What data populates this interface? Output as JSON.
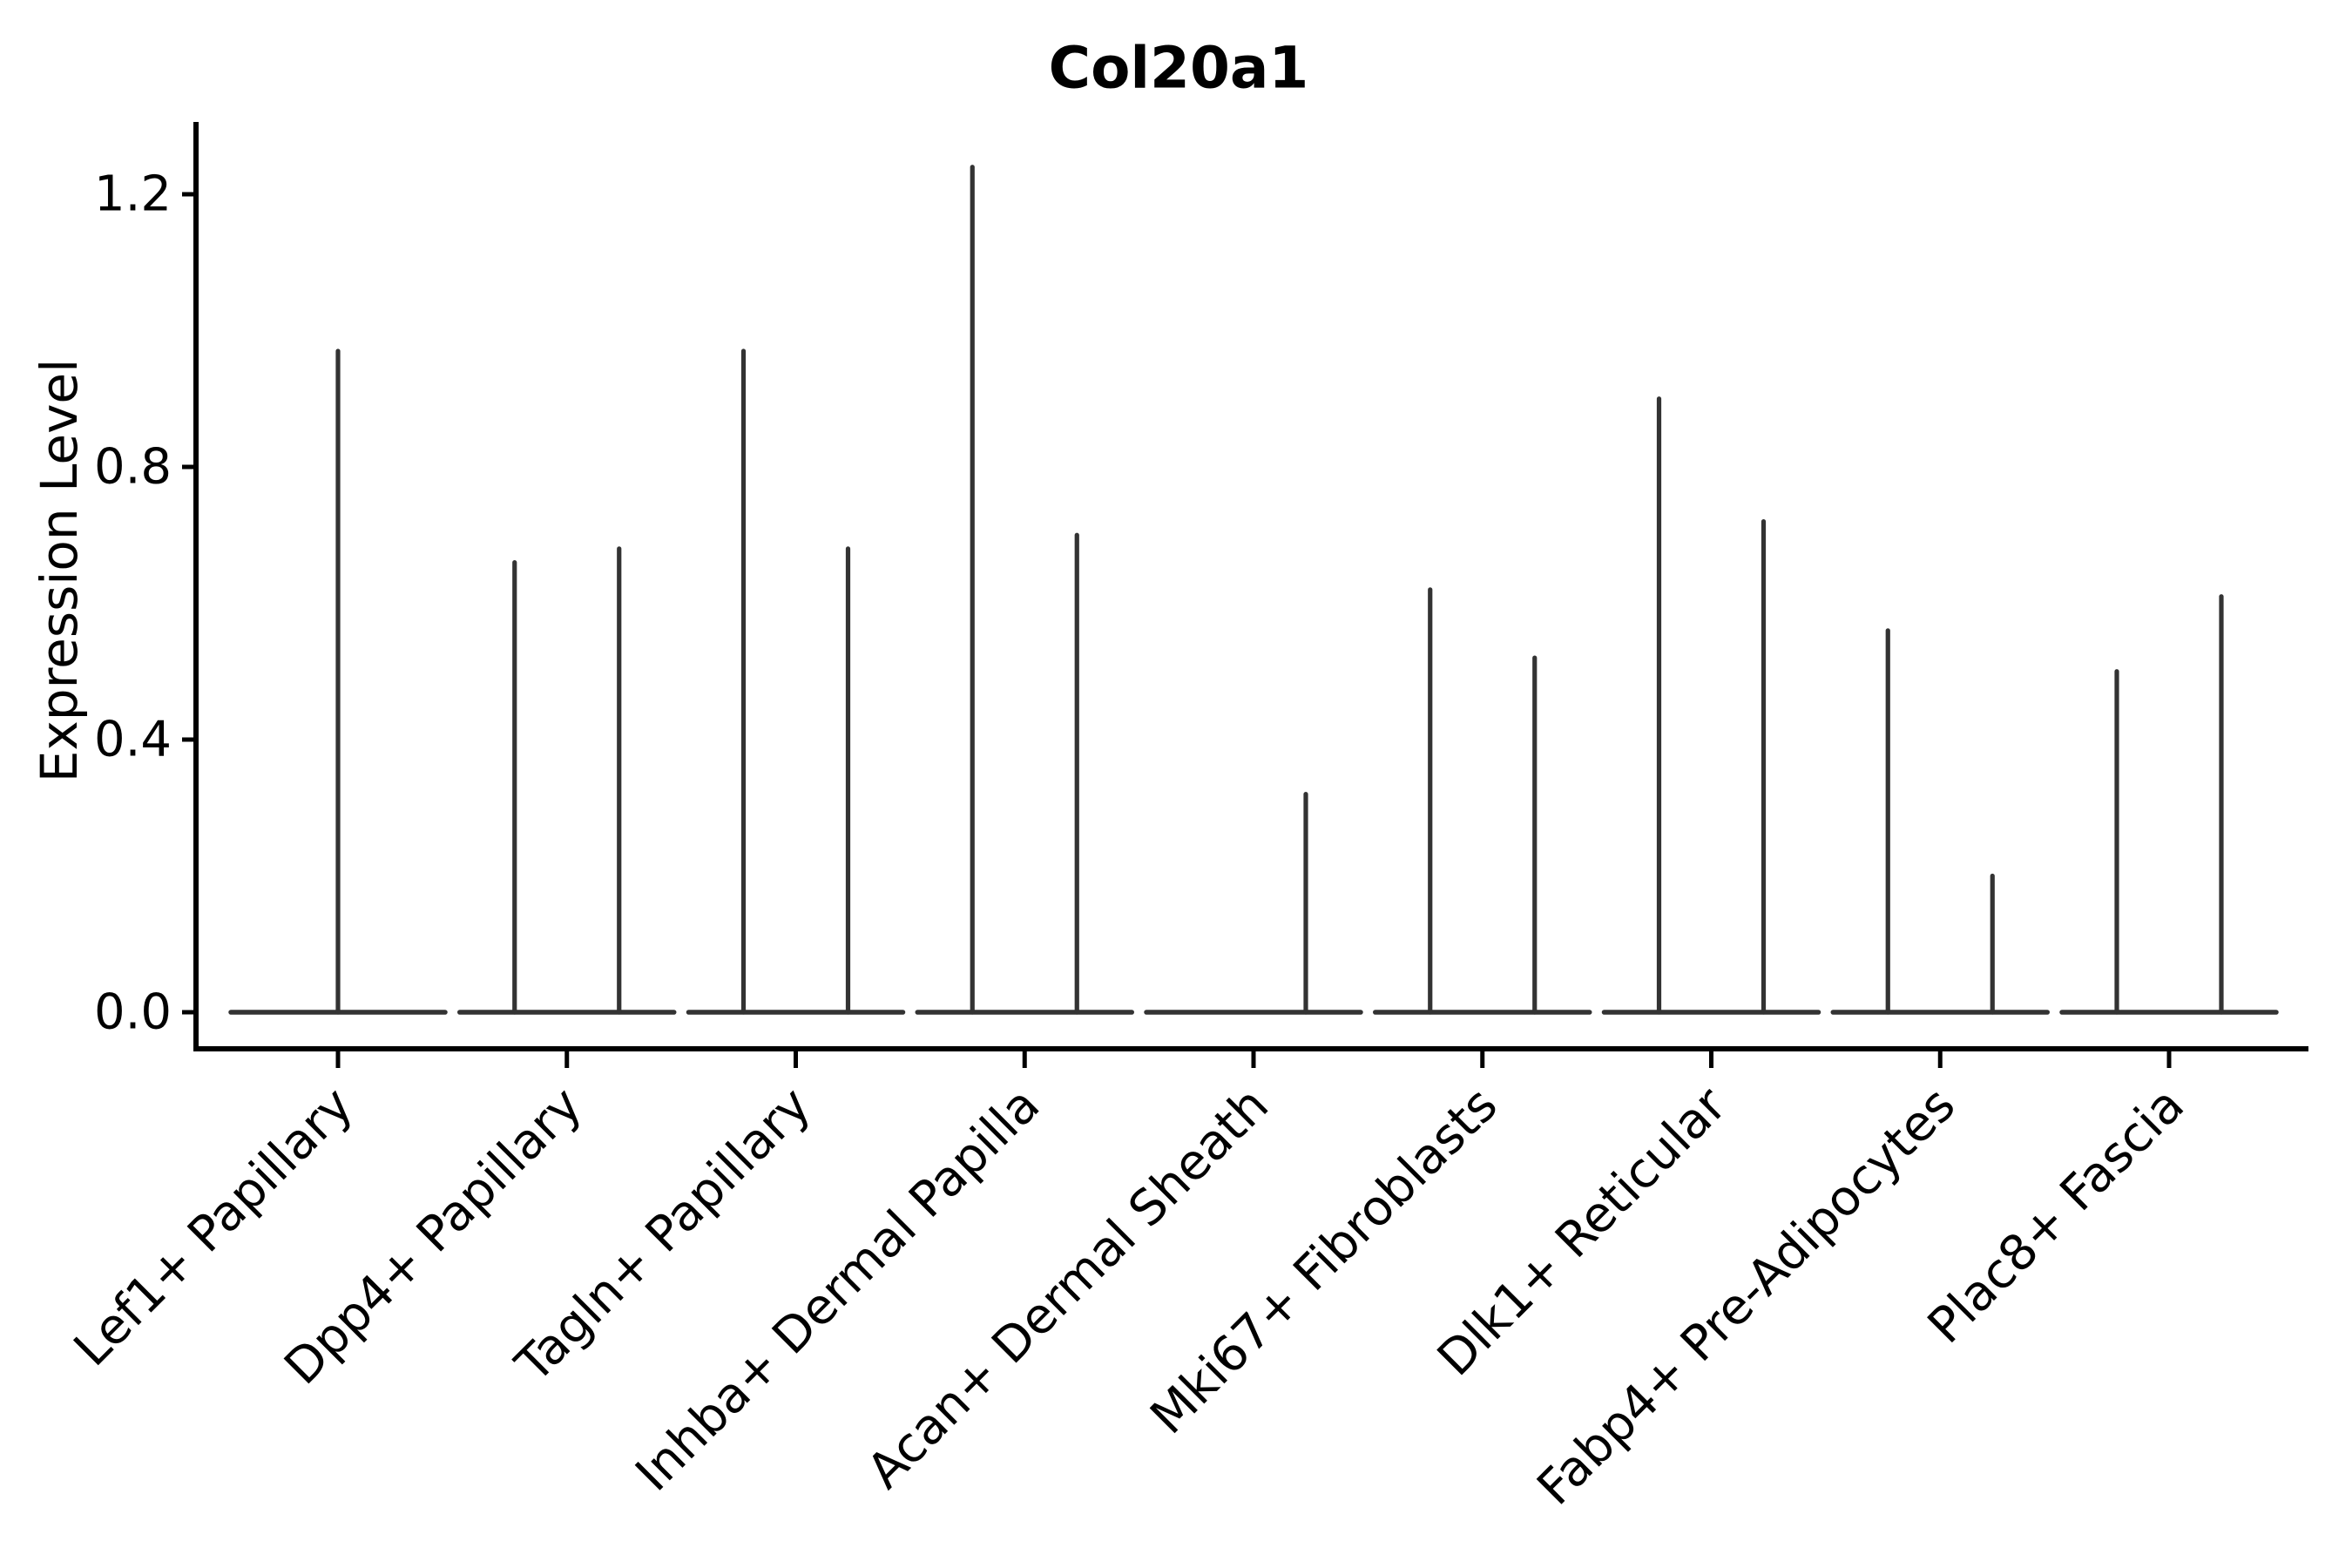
{
  "figure": {
    "background": "#ffffff"
  },
  "style": {
    "violin_color": "#333333",
    "axis_color": "#000000",
    "text_color": "#000000"
  },
  "chart_data": {
    "type": "violin",
    "title": "Col20a1",
    "xlabel": "",
    "ylabel": "Expression Level",
    "ylim": [
      -0.07,
      1.31
    ],
    "yticks": [
      "0.0",
      "0.4",
      "0.8",
      "1.2"
    ],
    "ytick_values": [
      0.0,
      0.4,
      0.8,
      1.2
    ],
    "grid": false,
    "legend": null,
    "categories": [
      "Lef1+ Papillary",
      "Dpp4+ Papillary",
      "Tagln+ Papillary",
      "Inhba+ Dermal Papilla",
      "Acan+ Dermal Sheath",
      "Mki67+ Fibroblasts",
      "Dlk1+ Reticular",
      "Fabp4+ Pre-Adipocytes",
      "Plac8+ Fascia"
    ],
    "violins": [
      {
        "category": "Lef1+ Papillary",
        "baseline_value": 0.0,
        "spikes": [
          {
            "position": "center",
            "value": 0.97
          }
        ]
      },
      {
        "category": "Dpp4+ Papillary",
        "baseline_value": 0.0,
        "spikes": [
          {
            "position": "left",
            "value": 0.66
          },
          {
            "position": "right",
            "value": 0.68
          }
        ]
      },
      {
        "category": "Tagln+ Papillary",
        "baseline_value": 0.0,
        "spikes": [
          {
            "position": "left",
            "value": 0.97
          },
          {
            "position": "right",
            "value": 0.68
          }
        ]
      },
      {
        "category": "Inhba+ Dermal Papilla",
        "baseline_value": 0.0,
        "spikes": [
          {
            "position": "left",
            "value": 1.24
          },
          {
            "position": "right",
            "value": 0.7
          }
        ]
      },
      {
        "category": "Acan+ Dermal Sheath",
        "baseline_value": 0.0,
        "spikes": [
          {
            "position": "right",
            "value": 0.32
          }
        ]
      },
      {
        "category": "Mki67+ Fibroblasts",
        "baseline_value": 0.0,
        "spikes": [
          {
            "position": "left",
            "value": 0.62
          },
          {
            "position": "right",
            "value": 0.52
          }
        ]
      },
      {
        "category": "Dlk1+ Reticular",
        "baseline_value": 0.0,
        "spikes": [
          {
            "position": "left",
            "value": 0.9
          },
          {
            "position": "right",
            "value": 0.72
          }
        ]
      },
      {
        "category": "Fabp4+ Pre-Adipocytes",
        "baseline_value": 0.0,
        "spikes": [
          {
            "position": "left",
            "value": 0.56
          },
          {
            "position": "right",
            "value": 0.2
          }
        ]
      },
      {
        "category": "Plac8+ Fascia",
        "baseline_value": 0.0,
        "spikes": [
          {
            "position": "left",
            "value": 0.5
          },
          {
            "position": "right",
            "value": 0.61
          }
        ]
      }
    ]
  }
}
